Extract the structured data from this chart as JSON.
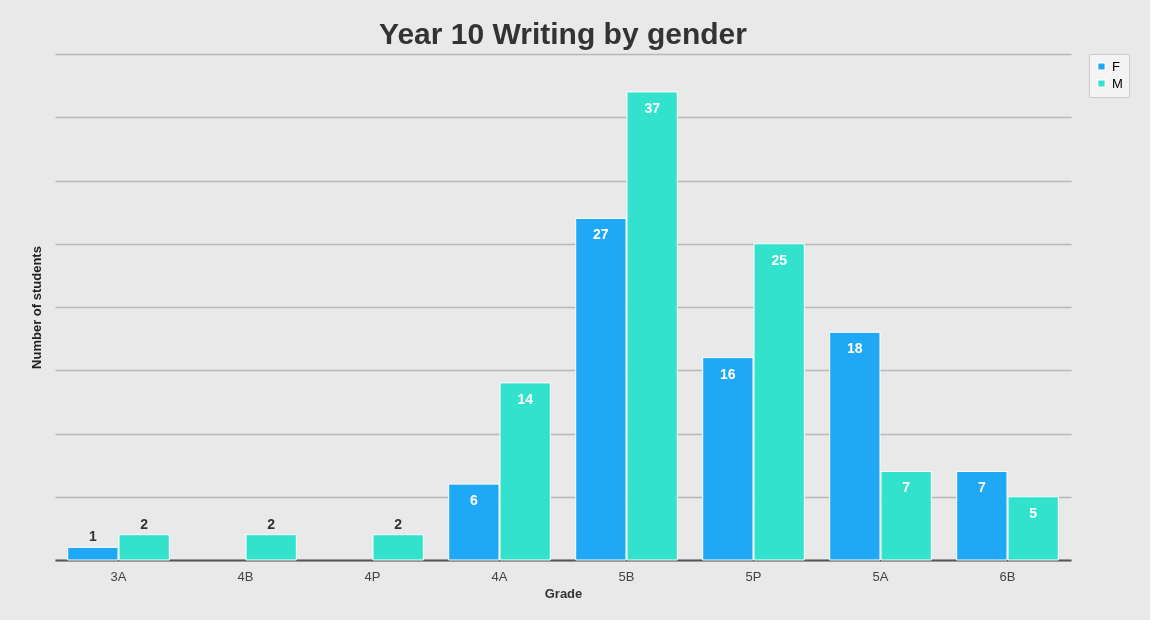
{
  "chart_data": {
    "type": "bar",
    "title": "Year 10 Writing by gender",
    "xlabel": "Grade",
    "ylabel": "Number of students",
    "categories": [
      "3A",
      "4B",
      "4P",
      "4A",
      "5B",
      "5P",
      "5A",
      "6B"
    ],
    "series": [
      {
        "name": "F",
        "color": "#1fa8f5",
        "values": [
          1,
          null,
          null,
          6,
          27,
          16,
          18,
          7
        ]
      },
      {
        "name": "M",
        "color": "#33e2cc",
        "values": [
          2,
          2,
          2,
          14,
          37,
          25,
          7,
          5
        ]
      }
    ],
    "ylim": [
      0,
      40
    ],
    "yticks": [
      {
        "value": 0,
        "label": null
      },
      {
        "value": 5,
        "label": null
      },
      {
        "value": 10,
        "label": null
      },
      {
        "value": 15,
        "label": null
      },
      {
        "value": 20,
        "label": null
      },
      {
        "value": 25,
        "label": null
      },
      {
        "value": 30,
        "label": null
      },
      {
        "value": 35,
        "label": null
      },
      {
        "value": 40,
        "label": null
      }
    ],
    "tick_labels": "x",
    "grid": "y",
    "legend": "right",
    "data_labels": true
  }
}
